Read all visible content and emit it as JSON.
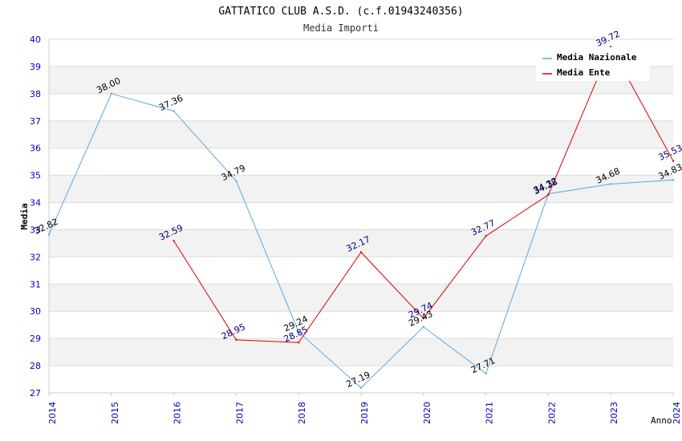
{
  "chart_data": {
    "type": "line",
    "title": "GATTATICO CLUB A.S.D. (c.f.01943240356)",
    "subtitle": "Media Importi",
    "xlabel": "Anno",
    "ylabel": "Media",
    "x": [
      "2014",
      "2015",
      "2016",
      "2017",
      "2018",
      "2019",
      "2020",
      "2021",
      "2022",
      "2023",
      "2024"
    ],
    "ylim": [
      27,
      40
    ],
    "yticks": [
      "27",
      "28",
      "29",
      "30",
      "31",
      "32",
      "33",
      "34",
      "35",
      "36",
      "37",
      "38",
      "39",
      "40"
    ],
    "grid": true,
    "legend_position": "top-right",
    "series": [
      {
        "name": "Media Nazionale",
        "color": "#5aa7e6",
        "values": [
          32.82,
          38.0,
          37.36,
          34.79,
          29.24,
          27.19,
          29.43,
          27.71,
          34.32,
          34.68,
          34.83
        ],
        "labels": [
          "32.82",
          "38.00",
          "37.36",
          "34.79",
          "29.24",
          "27.19",
          "29.43",
          "27.71",
          "34.32",
          "34.68",
          "34.83"
        ]
      },
      {
        "name": "Media Ente",
        "color": "#e00000",
        "values": [
          null,
          null,
          32.59,
          28.95,
          28.85,
          32.17,
          29.74,
          32.77,
          34.28,
          39.72,
          35.53
        ],
        "labels": [
          "",
          "",
          "32.59",
          "28.95",
          "28.85",
          "32.17",
          "29.74",
          "32.77",
          "34.28",
          "39.72",
          "35.53"
        ]
      }
    ]
  }
}
